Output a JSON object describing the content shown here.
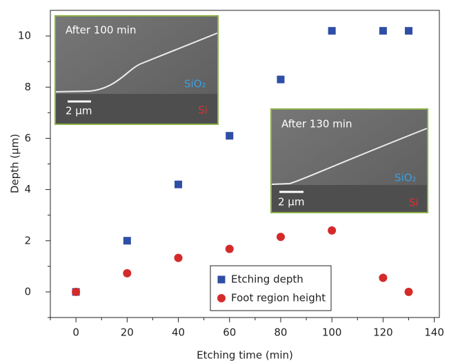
{
  "chart_data": {
    "type": "scatter",
    "x_label": "Etching time (min)",
    "y_label": "Depth (μm)",
    "xlim": [
      -10,
      142
    ],
    "ylim": [
      -1,
      11
    ],
    "xticks": [
      0,
      20,
      40,
      60,
      80,
      100,
      120,
      140
    ],
    "yticks": [
      0,
      2,
      4,
      6,
      8,
      10
    ],
    "xminorticks": [
      -10,
      10,
      30,
      50,
      70,
      90,
      110,
      130
    ],
    "yminorticks": [
      -1,
      1,
      3,
      5,
      7,
      9
    ],
    "legend": "lower center",
    "series": [
      {
        "name": "Etching depth",
        "color": "#2f4ea6",
        "marker": "square",
        "x": [
          0,
          20,
          40,
          60,
          80,
          100,
          120,
          130
        ],
        "values": [
          0,
          2,
          4.2,
          6.1,
          8.3,
          10.2,
          10.2,
          10.2
        ]
      },
      {
        "name": "Foot region height",
        "color": "#d42a2a",
        "marker": "circle",
        "x": [
          0,
          20,
          40,
          60,
          80,
          100,
          120,
          130
        ],
        "values": [
          0,
          0.73,
          1.33,
          1.68,
          2.15,
          2.4,
          0.55,
          0
        ]
      }
    ],
    "insets": [
      {
        "title": "After 100 min",
        "top_label": "SiO₂",
        "bottom_label": "Si",
        "scale_bar": "2 μm"
      },
      {
        "title": "After 130 min",
        "top_label": "SiO₂",
        "bottom_label": "Si",
        "scale_bar": "2 μm"
      }
    ]
  }
}
